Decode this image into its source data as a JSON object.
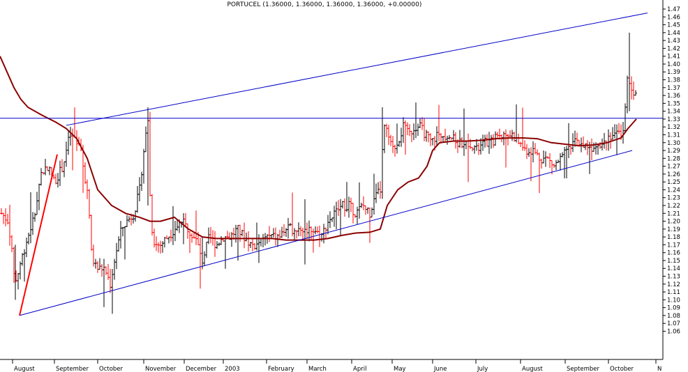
{
  "title": "PORTUCEL (1.36000, 1.36000, 1.36000, 1.36000, +0.00000)",
  "chart_data": {
    "type": "bar",
    "subtype": "ohlc",
    "title": "PORTUCEL (1.36000, 1.36000, 1.36000, 1.36000, +0.00000)",
    "ylim": [
      1.05,
      1.47
    ],
    "y_ticks": [
      1.06,
      1.07,
      1.08,
      1.09,
      1.1,
      1.11,
      1.12,
      1.13,
      1.14,
      1.15,
      1.16,
      1.17,
      1.18,
      1.19,
      1.2,
      1.21,
      1.22,
      1.23,
      1.24,
      1.25,
      1.26,
      1.27,
      1.28,
      1.29,
      1.3,
      1.31,
      1.32,
      1.33,
      1.34,
      1.35,
      1.36,
      1.37,
      1.38,
      1.39,
      1.4,
      1.41,
      1.42,
      1.43,
      1.44,
      1.45,
      1.46,
      1.47
    ],
    "x_labels": [
      "August",
      "September",
      "October",
      "November",
      "December",
      "2003",
      "February",
      "March",
      "April",
      "May",
      "June",
      "July",
      "August",
      "September",
      "October",
      "N"
    ],
    "grid": false,
    "colors": {
      "up": "#000000",
      "down": "#ff0000",
      "trendline": "#0000c8",
      "moving_average": "#8b0000",
      "axis": "#000000"
    },
    "bars_x_range": [
      2,
      912
    ],
    "bar_points": [
      [
        2,
        1.21
      ],
      [
        12,
        1.2
      ],
      [
        22,
        1.12
      ],
      [
        30,
        1.15
      ],
      [
        40,
        1.18
      ],
      [
        50,
        1.21
      ],
      [
        58,
        1.26
      ],
      [
        68,
        1.27
      ],
      [
        78,
        1.25
      ],
      [
        90,
        1.27
      ],
      [
        100,
        1.31
      ],
      [
        110,
        1.3
      ],
      [
        118,
        1.28
      ],
      [
        126,
        1.23
      ],
      [
        132,
        1.15
      ],
      [
        140,
        1.14
      ],
      [
        150,
        1.14
      ],
      [
        158,
        1.12
      ],
      [
        166,
        1.16
      ],
      [
        174,
        1.19
      ],
      [
        182,
        1.2
      ],
      [
        192,
        1.21
      ],
      [
        200,
        1.24
      ],
      [
        206,
        1.29
      ],
      [
        212,
        1.33
      ],
      [
        216,
        1.2
      ],
      [
        222,
        1.17
      ],
      [
        230,
        1.17
      ],
      [
        240,
        1.18
      ],
      [
        250,
        1.19
      ],
      [
        260,
        1.2
      ],
      [
        270,
        1.19
      ],
      [
        280,
        1.18
      ],
      [
        290,
        1.15
      ],
      [
        300,
        1.18
      ],
      [
        310,
        1.17
      ],
      [
        320,
        1.18
      ],
      [
        330,
        1.18
      ],
      [
        340,
        1.19
      ],
      [
        350,
        1.18
      ],
      [
        360,
        1.17
      ],
      [
        370,
        1.17
      ],
      [
        380,
        1.18
      ],
      [
        390,
        1.18
      ],
      [
        400,
        1.18
      ],
      [
        410,
        1.19
      ],
      [
        420,
        1.19
      ],
      [
        430,
        1.19
      ],
      [
        440,
        1.19
      ],
      [
        450,
        1.19
      ],
      [
        460,
        1.18
      ],
      [
        470,
        1.2
      ],
      [
        480,
        1.21
      ],
      [
        490,
        1.22
      ],
      [
        500,
        1.22
      ],
      [
        510,
        1.21
      ],
      [
        520,
        1.22
      ],
      [
        530,
        1.21
      ],
      [
        538,
        1.23
      ],
      [
        545,
        1.24
      ],
      [
        550,
        1.32
      ],
      [
        556,
        1.31
      ],
      [
        562,
        1.29
      ],
      [
        570,
        1.3
      ],
      [
        578,
        1.32
      ],
      [
        586,
        1.31
      ],
      [
        594,
        1.32
      ],
      [
        602,
        1.32
      ],
      [
        610,
        1.31
      ],
      [
        618,
        1.3
      ],
      [
        626,
        1.31
      ],
      [
        634,
        1.31
      ],
      [
        644,
        1.31
      ],
      [
        654,
        1.3
      ],
      [
        664,
        1.3
      ],
      [
        674,
        1.3
      ],
      [
        684,
        1.29
      ],
      [
        694,
        1.3
      ],
      [
        704,
        1.3
      ],
      [
        714,
        1.31
      ],
      [
        724,
        1.31
      ],
      [
        734,
        1.31
      ],
      [
        744,
        1.3
      ],
      [
        754,
        1.29
      ],
      [
        764,
        1.29
      ],
      [
        774,
        1.28
      ],
      [
        784,
        1.28
      ],
      [
        794,
        1.27
      ],
      [
        804,
        1.28
      ],
      [
        814,
        1.29
      ],
      [
        824,
        1.3
      ],
      [
        834,
        1.3
      ],
      [
        844,
        1.29
      ],
      [
        854,
        1.3
      ],
      [
        864,
        1.3
      ],
      [
        874,
        1.31
      ],
      [
        882,
        1.31
      ],
      [
        888,
        1.31
      ],
      [
        894,
        1.31
      ],
      [
        898,
        1.39
      ],
      [
        902,
        1.38
      ],
      [
        906,
        1.36
      ],
      [
        910,
        1.37
      ],
      [
        912,
        1.36
      ]
    ],
    "moving_average": [
      [
        0,
        1.41
      ],
      [
        10,
        1.39
      ],
      [
        20,
        1.37
      ],
      [
        30,
        1.355
      ],
      [
        40,
        1.345
      ],
      [
        60,
        1.335
      ],
      [
        80,
        1.326
      ],
      [
        95,
        1.318
      ],
      [
        110,
        1.305
      ],
      [
        125,
        1.28
      ],
      [
        140,
        1.24
      ],
      [
        160,
        1.22
      ],
      [
        180,
        1.21
      ],
      [
        200,
        1.205
      ],
      [
        215,
        1.2
      ],
      [
        230,
        1.2
      ],
      [
        250,
        1.205
      ],
      [
        270,
        1.19
      ],
      [
        290,
        1.18
      ],
      [
        310,
        1.178
      ],
      [
        330,
        1.178
      ],
      [
        350,
        1.178
      ],
      [
        370,
        1.178
      ],
      [
        390,
        1.178
      ],
      [
        410,
        1.176
      ],
      [
        430,
        1.176
      ],
      [
        450,
        1.176
      ],
      [
        470,
        1.178
      ],
      [
        490,
        1.182
      ],
      [
        510,
        1.185
      ],
      [
        530,
        1.186
      ],
      [
        545,
        1.19
      ],
      [
        555,
        1.22
      ],
      [
        570,
        1.24
      ],
      [
        585,
        1.25
      ],
      [
        600,
        1.255
      ],
      [
        612,
        1.27
      ],
      [
        620,
        1.29
      ],
      [
        630,
        1.3
      ],
      [
        650,
        1.302
      ],
      [
        670,
        1.302
      ],
      [
        690,
        1.303
      ],
      [
        710,
        1.305
      ],
      [
        730,
        1.306
      ],
      [
        750,
        1.306
      ],
      [
        770,
        1.305
      ],
      [
        790,
        1.3
      ],
      [
        810,
        1.298
      ],
      [
        830,
        1.296
      ],
      [
        850,
        1.297
      ],
      [
        870,
        1.3
      ],
      [
        890,
        1.306
      ],
      [
        900,
        1.318
      ],
      [
        912,
        1.33
      ]
    ],
    "trendlines": [
      {
        "from": [
          28,
          1.08
        ],
        "to": [
          906,
          1.29
        ]
      },
      {
        "from": [
          95,
          1.322
        ],
        "to": [
          928,
          1.465
        ]
      },
      {
        "from": [
          0,
          1.331
        ],
        "to": [
          950,
          1.331
        ]
      },
      {
        "from": [
          28,
          1.08
        ],
        "to": [
          82,
          1.285
        ]
      }
    ]
  }
}
